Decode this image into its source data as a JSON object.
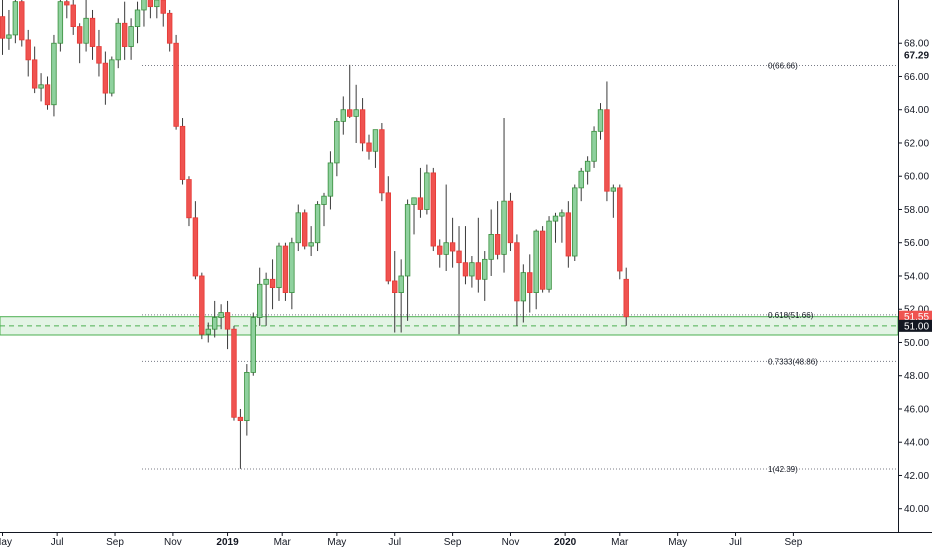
{
  "chart_data": {
    "type": "candlestick",
    "interval": "weekly",
    "y_axis": {
      "range": [
        38.6,
        70.6
      ],
      "ticks": [
        "40.00",
        "42.00",
        "44.00",
        "46.00",
        "48.00",
        "50.00",
        "52.00",
        "54.00",
        "56.00",
        "58.00",
        "60.00",
        "62.00",
        "64.00",
        "66.00",
        "68.00"
      ],
      "ticks_bold": [
        "67.29"
      ]
    },
    "x_axis": {
      "labels": [
        {
          "label": "May",
          "bold": false,
          "i": 0
        },
        {
          "label": "Jul",
          "bold": false,
          "i": 8.5
        },
        {
          "label": "Sep",
          "bold": false,
          "i": 17.5
        },
        {
          "label": "Nov",
          "bold": false,
          "i": 26.5
        },
        {
          "label": "2019",
          "bold": true,
          "i": 35
        },
        {
          "label": "Mar",
          "bold": false,
          "i": 43.5
        },
        {
          "label": "May",
          "bold": false,
          "i": 52
        },
        {
          "label": "Jul",
          "bold": false,
          "i": 61
        },
        {
          "label": "Sep",
          "bold": false,
          "i": 70
        },
        {
          "label": "Nov",
          "bold": false,
          "i": 79
        },
        {
          "label": "2020",
          "bold": true,
          "i": 87.5
        },
        {
          "label": "Mar",
          "bold": false,
          "i": 96
        },
        {
          "label": "May",
          "bold": false,
          "i": 105
        },
        {
          "label": "Jul",
          "bold": false,
          "i": 114
        },
        {
          "label": "Sep",
          "bold": false,
          "i": 123
        }
      ]
    },
    "fib_levels": [
      {
        "label": "0(66.66)",
        "value": 66.66
      },
      {
        "label": "0.618(51.66)",
        "value": 51.66
      },
      {
        "label": "0.7333(48.86)",
        "value": 48.86
      },
      {
        "label": "1(42.39)",
        "value": 42.39
      }
    ],
    "support_zone": [
      50.45,
      51.55
    ],
    "price_labels": {
      "last": {
        "text": "51.55",
        "value": 51.55,
        "color": "#ef5350"
      },
      "line": {
        "text": "51.00",
        "value": 51.0,
        "color": "#131722"
      }
    },
    "candles": [
      [
        69.6,
        71.0,
        67.3,
        68.3
      ],
      [
        68.3,
        70.0,
        67.6,
        68.5
      ],
      [
        68.5,
        71.0,
        68.0,
        70.5
      ],
      [
        70.5,
        71.0,
        67.8,
        68.2
      ],
      [
        68.2,
        68.8,
        66.0,
        67.0
      ],
      [
        67.0,
        67.8,
        65.0,
        65.3
      ],
      [
        65.3,
        66.2,
        64.5,
        65.5
      ],
      [
        65.5,
        66.0,
        64.0,
        64.3
      ],
      [
        64.3,
        68.5,
        63.6,
        68.0
      ],
      [
        68.0,
        71.0,
        67.5,
        70.5
      ],
      [
        70.5,
        71.0,
        69.5,
        70.3
      ],
      [
        70.3,
        71.0,
        68.5,
        69.0
      ],
      [
        69.0,
        69.2,
        66.8,
        68.0
      ],
      [
        68.0,
        71.0,
        67.5,
        69.5
      ],
      [
        69.5,
        70.0,
        67.0,
        67.8
      ],
      [
        67.8,
        68.8,
        66.0,
        66.8
      ],
      [
        66.8,
        67.5,
        64.3,
        65.0
      ],
      [
        65.0,
        67.2,
        64.8,
        67.0
      ],
      [
        67.0,
        69.5,
        66.5,
        69.2
      ],
      [
        69.2,
        70.5,
        67.0,
        67.8
      ],
      [
        67.8,
        69.5,
        67.0,
        69.0
      ],
      [
        69.0,
        70.5,
        68.0,
        70.0
      ],
      [
        70.0,
        71.0,
        69.0,
        70.8
      ],
      [
        70.8,
        71.0,
        69.5,
        70.2
      ],
      [
        70.2,
        70.6,
        69.5,
        70.6
      ],
      [
        70.6,
        71.0,
        69.0,
        69.8
      ],
      [
        69.8,
        70.0,
        67.5,
        68.0
      ],
      [
        68.0,
        68.5,
        62.8,
        63.0
      ],
      [
        63.0,
        63.5,
        59.5,
        59.8
      ],
      [
        59.8,
        60.0,
        57.0,
        57.5
      ],
      [
        57.5,
        58.5,
        53.8,
        54.0
      ],
      [
        54.0,
        54.2,
        50.2,
        50.5
      ],
      [
        50.5,
        51.2,
        50.0,
        50.8
      ],
      [
        50.8,
        52.5,
        50.3,
        51.5
      ],
      [
        51.5,
        52.3,
        50.8,
        51.8
      ],
      [
        51.8,
        52.5,
        49.6,
        50.8
      ],
      [
        50.8,
        51.0,
        45.3,
        45.5
      ],
      [
        45.5,
        46.0,
        42.4,
        45.3
      ],
      [
        45.3,
        48.7,
        44.4,
        48.2
      ],
      [
        48.2,
        51.8,
        48.0,
        51.5
      ],
      [
        51.5,
        54.5,
        51.0,
        53.5
      ],
      [
        53.5,
        54.2,
        51.0,
        53.8
      ],
      [
        53.8,
        55.0,
        52.0,
        53.3
      ],
      [
        53.3,
        56.0,
        52.5,
        55.8
      ],
      [
        55.8,
        56.0,
        52.5,
        53.0
      ],
      [
        53.0,
        56.3,
        52.0,
        56.0
      ],
      [
        56.0,
        58.3,
        55.5,
        57.8
      ],
      [
        57.8,
        58.0,
        55.6,
        55.8
      ],
      [
        55.8,
        57.0,
        55.2,
        56.0
      ],
      [
        56.0,
        58.5,
        55.5,
        58.3
      ],
      [
        58.3,
        59.0,
        57.0,
        58.8
      ],
      [
        58.8,
        61.5,
        58.0,
        60.8
      ],
      [
        60.8,
        63.5,
        60.0,
        63.3
      ],
      [
        63.3,
        64.8,
        62.5,
        64.0
      ],
      [
        64.0,
        66.7,
        63.5,
        63.6
      ],
      [
        63.6,
        65.5,
        62.0,
        64.0
      ],
      [
        64.0,
        64.7,
        61.5,
        62.0
      ],
      [
        62.0,
        62.5,
        61.0,
        61.5
      ],
      [
        61.5,
        62.5,
        60.5,
        62.8
      ],
      [
        62.8,
        63.2,
        58.5,
        59.0
      ],
      [
        59.0,
        60.0,
        53.5,
        53.7
      ],
      [
        53.7,
        55.5,
        50.6,
        53.0
      ],
      [
        53.0,
        55.0,
        50.6,
        54.0
      ],
      [
        54.0,
        58.6,
        51.3,
        58.3
      ],
      [
        58.3,
        58.5,
        56.5,
        58.7
      ],
      [
        58.7,
        60.5,
        57.5,
        58.0
      ],
      [
        58.0,
        60.7,
        57.7,
        60.2
      ],
      [
        60.2,
        60.5,
        55.5,
        55.8
      ],
      [
        55.8,
        56.2,
        54.5,
        55.3
      ],
      [
        55.3,
        59.5,
        54.3,
        56.0
      ],
      [
        56.0,
        57.5,
        54.5,
        55.5
      ],
      [
        55.5,
        57.0,
        50.5,
        54.8
      ],
      [
        54.8,
        57.0,
        53.5,
        54.0
      ],
      [
        54.0,
        55.2,
        53.3,
        54.8
      ],
      [
        54.8,
        57.5,
        53.0,
        53.8
      ],
      [
        53.8,
        55.5,
        52.5,
        55.0
      ],
      [
        55.0,
        58.0,
        54.0,
        56.5
      ],
      [
        56.5,
        58.5,
        55.0,
        55.3
      ],
      [
        55.3,
        63.5,
        54.2,
        58.5
      ],
      [
        58.5,
        59.0,
        55.5,
        56.0
      ],
      [
        56.0,
        56.5,
        51.0,
        52.5
      ],
      [
        52.5,
        54.7,
        51.2,
        54.2
      ],
      [
        54.2,
        55.3,
        51.8,
        53.0
      ],
      [
        53.0,
        56.8,
        52.0,
        56.7
      ],
      [
        56.7,
        57.0,
        53.0,
        53.2
      ],
      [
        53.2,
        57.6,
        53.0,
        57.3
      ],
      [
        57.3,
        57.8,
        56.0,
        57.6
      ],
      [
        57.6,
        58.0,
        56.0,
        57.8
      ],
      [
        57.8,
        58.5,
        54.5,
        55.2
      ],
      [
        55.2,
        59.5,
        54.9,
        59.3
      ],
      [
        59.3,
        60.5,
        58.5,
        60.3
      ],
      [
        60.3,
        61.2,
        59.5,
        60.9
      ],
      [
        60.9,
        63.0,
        60.5,
        62.7
      ],
      [
        62.7,
        64.4,
        62.2,
        64.0
      ],
      [
        64.0,
        65.7,
        58.5,
        59.1
      ],
      [
        59.1,
        59.5,
        57.5,
        59.3
      ],
      [
        59.3,
        59.5,
        53.8,
        54.3
      ],
      [
        53.8,
        54.5,
        51.0,
        51.55
      ]
    ]
  }
}
